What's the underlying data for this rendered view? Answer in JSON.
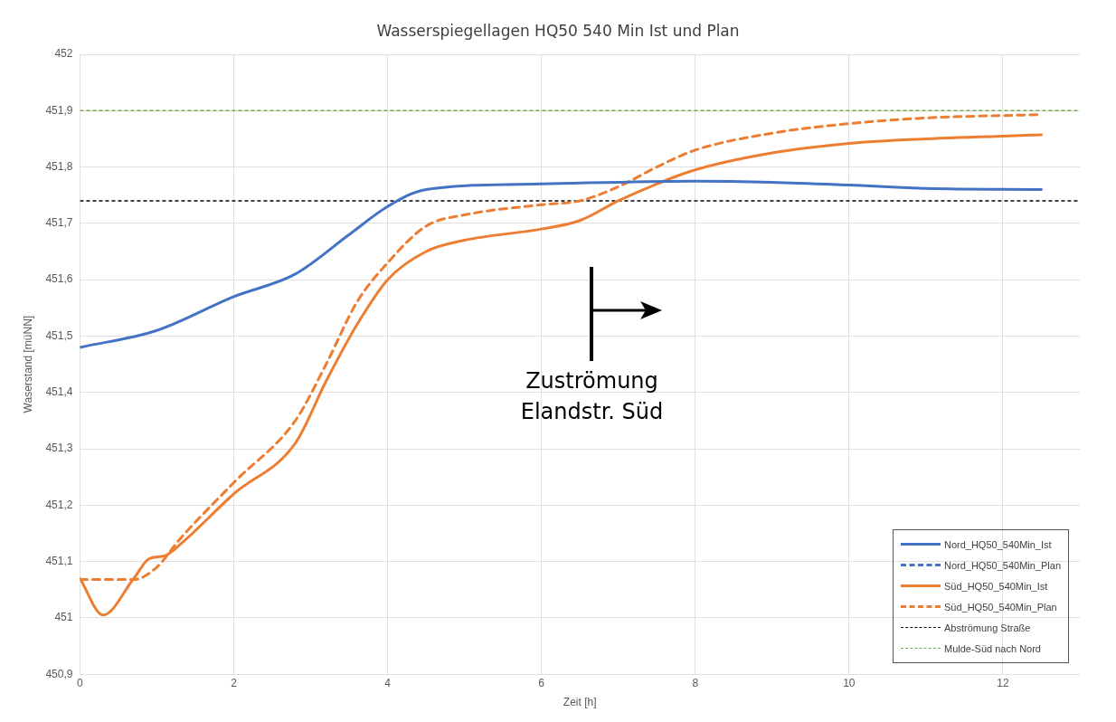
{
  "chart_data": {
    "type": "line",
    "title": "Wasserspiegellagen HQ50 540 Min Ist und Plan",
    "xlabel": "Zeit [h]",
    "ylabel": "Waserstand [müNN]",
    "xlim": [
      0,
      13
    ],
    "xticks": [
      0,
      2,
      4,
      6,
      8,
      10,
      12
    ],
    "ylim": [
      450.9,
      452
    ],
    "yticks": [
      {
        "value": 450.9,
        "label": "450,9"
      },
      {
        "value": 451,
        "label": "451"
      },
      {
        "value": 451.1,
        "label": "451,1"
      },
      {
        "value": 451.2,
        "label": "451,2"
      },
      {
        "value": 451.3,
        "label": "451,3"
      },
      {
        "value": 451.4,
        "label": "451,4"
      },
      {
        "value": 451.5,
        "label": "451,5"
      },
      {
        "value": 451.6,
        "label": "451,6"
      },
      {
        "value": 451.7,
        "label": "451,7"
      },
      {
        "value": 451.8,
        "label": "451,8"
      },
      {
        "value": 451.9,
        "label": "451,9"
      },
      {
        "value": 452,
        "label": "452"
      }
    ],
    "grid": true,
    "legend": "bottom right",
    "marker": "none",
    "series": [
      {
        "name": "Nord_HQ50_540Min_Ist",
        "color": "#4472c4",
        "line_style": "solid",
        "x": [
          0,
          1,
          2,
          2.8,
          3.5,
          4,
          4.5,
          6,
          8,
          9,
          10,
          11,
          12.5
        ],
        "values": [
          451.48,
          451.51,
          451.57,
          451.61,
          451.68,
          451.73,
          451.76,
          451.77,
          451.775,
          451.773,
          451.768,
          451.762,
          451.76
        ]
      },
      {
        "name": "Nord_HQ50_540Min_Plan",
        "color": "#4472c4",
        "line_style": "dashed"
      },
      {
        "name": "Süd_HQ50_540Min_Ist",
        "color": "#ed7d31",
        "line_style": "solid",
        "x": [
          0,
          0.3,
          0.7,
          0.9,
          1.1,
          1.3,
          2,
          2.8,
          3.2,
          3.6,
          4,
          4.5,
          5,
          6,
          6.5,
          7,
          7.5,
          8,
          9,
          10,
          11,
          12.5
        ],
        "values": [
          451.07,
          451.005,
          451.07,
          451.105,
          451.11,
          451.13,
          451.22,
          451.31,
          451.42,
          451.52,
          451.6,
          451.65,
          451.67,
          451.69,
          451.705,
          451.74,
          451.77,
          451.795,
          451.825,
          451.842,
          451.85,
          451.857
        ]
      },
      {
        "name": "Süd_HQ50_540Min_Plan",
        "color": "#ed7d31",
        "line_style": "dashed",
        "x": [
          0,
          0.7,
          1,
          1.3,
          2,
          2.8,
          3.2,
          3.6,
          4,
          4.5,
          5,
          6,
          6.5,
          7,
          7.5,
          8,
          9,
          10,
          11,
          12.5
        ],
        "values": [
          451.068,
          451.068,
          451.09,
          451.14,
          451.24,
          451.35,
          451.45,
          451.56,
          451.63,
          451.695,
          451.715,
          451.733,
          451.74,
          451.765,
          451.8,
          451.83,
          451.86,
          451.877,
          451.887,
          451.893
        ]
      }
    ],
    "ref_lines": [
      {
        "axis": "y",
        "value": 451.74,
        "label": "Abströmung Straße",
        "color": "#000000",
        "line_style": "dashed"
      },
      {
        "axis": "y",
        "value": 451.9,
        "label": "Mulde-Süd nach Nord",
        "color": "#70ad47",
        "line_style": "dashed"
      }
    ],
    "annotations": [
      "Zuströmung\nElandstr. Süd"
    ]
  }
}
